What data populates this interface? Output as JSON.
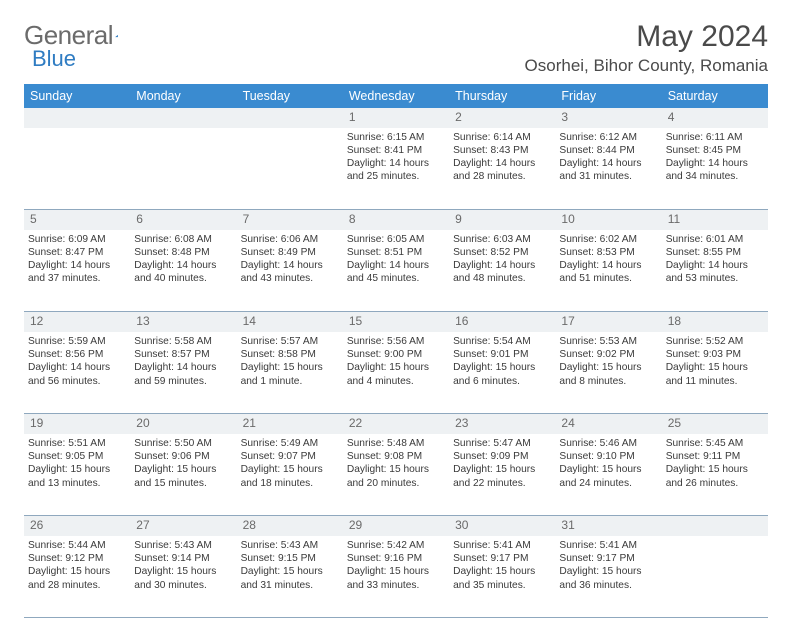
{
  "brand": {
    "left": "General",
    "right": "Blue"
  },
  "title": "May 2024",
  "location": "Osorhei, Bihor County, Romania",
  "colors": {
    "header_bg": "#3a8bd0",
    "header_text": "#ffffff",
    "daynum_bg": "#eef1f3",
    "border": "#8fa8be",
    "text": "#3a3a3a",
    "brand_gray": "#6b6b6b",
    "brand_blue": "#2f7cc2"
  },
  "weekdays": [
    "Sunday",
    "Monday",
    "Tuesday",
    "Wednesday",
    "Thursday",
    "Friday",
    "Saturday"
  ],
  "weeks": [
    {
      "nums": [
        "",
        "",
        "",
        "1",
        "2",
        "3",
        "4"
      ],
      "cells": [
        null,
        null,
        null,
        {
          "sunrise": "6:15 AM",
          "sunset": "8:41 PM",
          "daylight": "14 hours and 25 minutes."
        },
        {
          "sunrise": "6:14 AM",
          "sunset": "8:43 PM",
          "daylight": "14 hours and 28 minutes."
        },
        {
          "sunrise": "6:12 AM",
          "sunset": "8:44 PM",
          "daylight": "14 hours and 31 minutes."
        },
        {
          "sunrise": "6:11 AM",
          "sunset": "8:45 PM",
          "daylight": "14 hours and 34 minutes."
        }
      ]
    },
    {
      "nums": [
        "5",
        "6",
        "7",
        "8",
        "9",
        "10",
        "11"
      ],
      "cells": [
        {
          "sunrise": "6:09 AM",
          "sunset": "8:47 PM",
          "daylight": "14 hours and 37 minutes."
        },
        {
          "sunrise": "6:08 AM",
          "sunset": "8:48 PM",
          "daylight": "14 hours and 40 minutes."
        },
        {
          "sunrise": "6:06 AM",
          "sunset": "8:49 PM",
          "daylight": "14 hours and 43 minutes."
        },
        {
          "sunrise": "6:05 AM",
          "sunset": "8:51 PM",
          "daylight": "14 hours and 45 minutes."
        },
        {
          "sunrise": "6:03 AM",
          "sunset": "8:52 PM",
          "daylight": "14 hours and 48 minutes."
        },
        {
          "sunrise": "6:02 AM",
          "sunset": "8:53 PM",
          "daylight": "14 hours and 51 minutes."
        },
        {
          "sunrise": "6:01 AM",
          "sunset": "8:55 PM",
          "daylight": "14 hours and 53 minutes."
        }
      ]
    },
    {
      "nums": [
        "12",
        "13",
        "14",
        "15",
        "16",
        "17",
        "18"
      ],
      "cells": [
        {
          "sunrise": "5:59 AM",
          "sunset": "8:56 PM",
          "daylight": "14 hours and 56 minutes."
        },
        {
          "sunrise": "5:58 AM",
          "sunset": "8:57 PM",
          "daylight": "14 hours and 59 minutes."
        },
        {
          "sunrise": "5:57 AM",
          "sunset": "8:58 PM",
          "daylight": "15 hours and 1 minute."
        },
        {
          "sunrise": "5:56 AM",
          "sunset": "9:00 PM",
          "daylight": "15 hours and 4 minutes."
        },
        {
          "sunrise": "5:54 AM",
          "sunset": "9:01 PM",
          "daylight": "15 hours and 6 minutes."
        },
        {
          "sunrise": "5:53 AM",
          "sunset": "9:02 PM",
          "daylight": "15 hours and 8 minutes."
        },
        {
          "sunrise": "5:52 AM",
          "sunset": "9:03 PM",
          "daylight": "15 hours and 11 minutes."
        }
      ]
    },
    {
      "nums": [
        "19",
        "20",
        "21",
        "22",
        "23",
        "24",
        "25"
      ],
      "cells": [
        {
          "sunrise": "5:51 AM",
          "sunset": "9:05 PM",
          "daylight": "15 hours and 13 minutes."
        },
        {
          "sunrise": "5:50 AM",
          "sunset": "9:06 PM",
          "daylight": "15 hours and 15 minutes."
        },
        {
          "sunrise": "5:49 AM",
          "sunset": "9:07 PM",
          "daylight": "15 hours and 18 minutes."
        },
        {
          "sunrise": "5:48 AM",
          "sunset": "9:08 PM",
          "daylight": "15 hours and 20 minutes."
        },
        {
          "sunrise": "5:47 AM",
          "sunset": "9:09 PM",
          "daylight": "15 hours and 22 minutes."
        },
        {
          "sunrise": "5:46 AM",
          "sunset": "9:10 PM",
          "daylight": "15 hours and 24 minutes."
        },
        {
          "sunrise": "5:45 AM",
          "sunset": "9:11 PM",
          "daylight": "15 hours and 26 minutes."
        }
      ]
    },
    {
      "nums": [
        "26",
        "27",
        "28",
        "29",
        "30",
        "31",
        ""
      ],
      "cells": [
        {
          "sunrise": "5:44 AM",
          "sunset": "9:12 PM",
          "daylight": "15 hours and 28 minutes."
        },
        {
          "sunrise": "5:43 AM",
          "sunset": "9:14 PM",
          "daylight": "15 hours and 30 minutes."
        },
        {
          "sunrise": "5:43 AM",
          "sunset": "9:15 PM",
          "daylight": "15 hours and 31 minutes."
        },
        {
          "sunrise": "5:42 AM",
          "sunset": "9:16 PM",
          "daylight": "15 hours and 33 minutes."
        },
        {
          "sunrise": "5:41 AM",
          "sunset": "9:17 PM",
          "daylight": "15 hours and 35 minutes."
        },
        {
          "sunrise": "5:41 AM",
          "sunset": "9:17 PM",
          "daylight": "15 hours and 36 minutes."
        },
        null
      ]
    }
  ],
  "labels": {
    "sunrise": "Sunrise: ",
    "sunset": "Sunset: ",
    "daylight": "Daylight: "
  }
}
